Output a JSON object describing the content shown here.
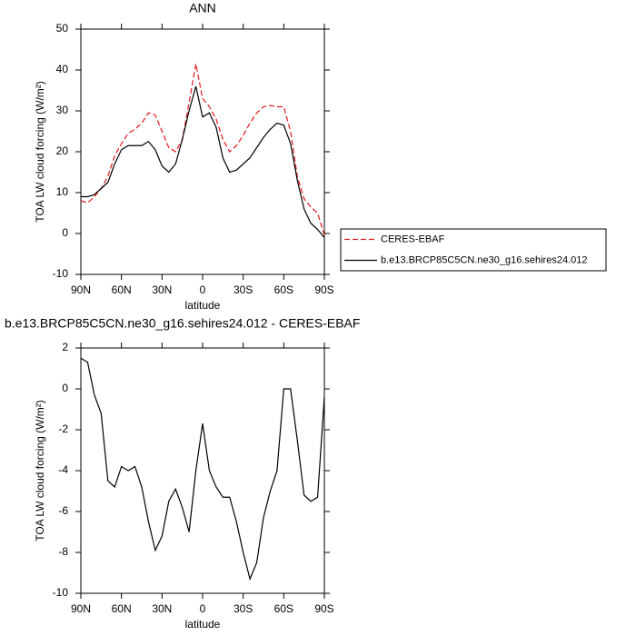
{
  "chart_data": [
    {
      "type": "line",
      "title": "ANN",
      "xlabel": "latitude",
      "ylabel": "TOA LW cloud forcing (W/m²)",
      "x": [
        90,
        85,
        80,
        75,
        70,
        65,
        60,
        55,
        50,
        45,
        40,
        35,
        30,
        25,
        20,
        15,
        10,
        5,
        0,
        -5,
        -10,
        -15,
        -20,
        -25,
        -30,
        -35,
        -40,
        -45,
        -50,
        -55,
        -60,
        -65,
        -70,
        -75,
        -80,
        -85,
        -90
      ],
      "xlim": [
        90,
        -90
      ],
      "xticks": [
        {
          "value": 90,
          "label": "90N"
        },
        {
          "value": 60,
          "label": "60N"
        },
        {
          "value": 30,
          "label": "30N"
        },
        0,
        {
          "value": -30,
          "label": "30S"
        },
        {
          "value": -60,
          "label": "60S"
        },
        {
          "value": -90,
          "label": "90S"
        }
      ],
      "ylim": [
        -10,
        50
      ],
      "yticks": [
        -10,
        0,
        10,
        20,
        30,
        40,
        50
      ],
      "legend": "right",
      "series": [
        {
          "name": "CERES-EBAF",
          "color": "#e41a1c",
          "linestyle": "dashed",
          "values": [
            8,
            7.5,
            9,
            11,
            14,
            19,
            22,
            24.5,
            25.5,
            27,
            29.5,
            29,
            25,
            21,
            20,
            23,
            32,
            41.5,
            33,
            31,
            28,
            23,
            20,
            21.5,
            24,
            27,
            29.5,
            31,
            31.3,
            31,
            31,
            25,
            14,
            8.5,
            6.5,
            5,
            -0.5
          ]
        },
        {
          "name": "b.e13.BRCP85C5CN.ne30_g16.sehires24.012",
          "color": "#000000",
          "linestyle": "solid",
          "values": [
            9,
            9,
            9.5,
            11,
            12.5,
            17,
            20.5,
            21.5,
            21.5,
            21.5,
            22.5,
            20.5,
            16.5,
            15,
            17,
            23,
            30,
            36,
            28.5,
            29.5,
            26,
            18.5,
            15,
            15.5,
            17,
            18.5,
            21,
            23.5,
            25.5,
            27,
            26.5,
            22,
            13,
            6,
            2.5,
            1,
            -1
          ]
        }
      ]
    },
    {
      "type": "line",
      "title": "b.e13.BRCP85C5CN.ne30_g16.sehires24.012 - CERES-EBAF",
      "xlabel": "latitude",
      "ylabel": "TOA LW cloud forcing (W/m²)",
      "x": [
        90,
        85,
        80,
        75,
        70,
        65,
        60,
        55,
        50,
        45,
        40,
        35,
        30,
        25,
        20,
        15,
        10,
        5,
        0,
        -5,
        -10,
        -15,
        -20,
        -25,
        -30,
        -35,
        -40,
        -45,
        -50,
        -55,
        -60,
        -65,
        -70,
        -75,
        -80,
        -85,
        -90
      ],
      "xlim": [
        90,
        -90
      ],
      "xticks": [
        {
          "value": 90,
          "label": "90N"
        },
        {
          "value": 60,
          "label": "60N"
        },
        {
          "value": 30,
          "label": "30N"
        },
        0,
        {
          "value": -30,
          "label": "30S"
        },
        {
          "value": -60,
          "label": "60S"
        },
        {
          "value": -90,
          "label": "90S"
        }
      ],
      "ylim": [
        -10,
        2
      ],
      "yticks": [
        -10,
        -8,
        -6,
        -4,
        -2,
        0,
        2
      ],
      "series": [
        {
          "color": "#000000",
          "linestyle": "solid",
          "values": [
            1.5,
            1.3,
            -0.3,
            -1.2,
            -4.5,
            -4.8,
            -3.8,
            -4,
            -3.8,
            -4.8,
            -6.5,
            -7.9,
            -7.2,
            -5.5,
            -4.9,
            -5.8,
            -7,
            -4,
            -1.7,
            -4,
            -4.8,
            -5.3,
            -5.3,
            -6.5,
            -8,
            -9.3,
            -8.5,
            -6.3,
            -5,
            -4,
            0,
            0,
            -2.5,
            -5.2,
            -5.5,
            -5.3,
            -0.4
          ]
        }
      ]
    }
  ]
}
